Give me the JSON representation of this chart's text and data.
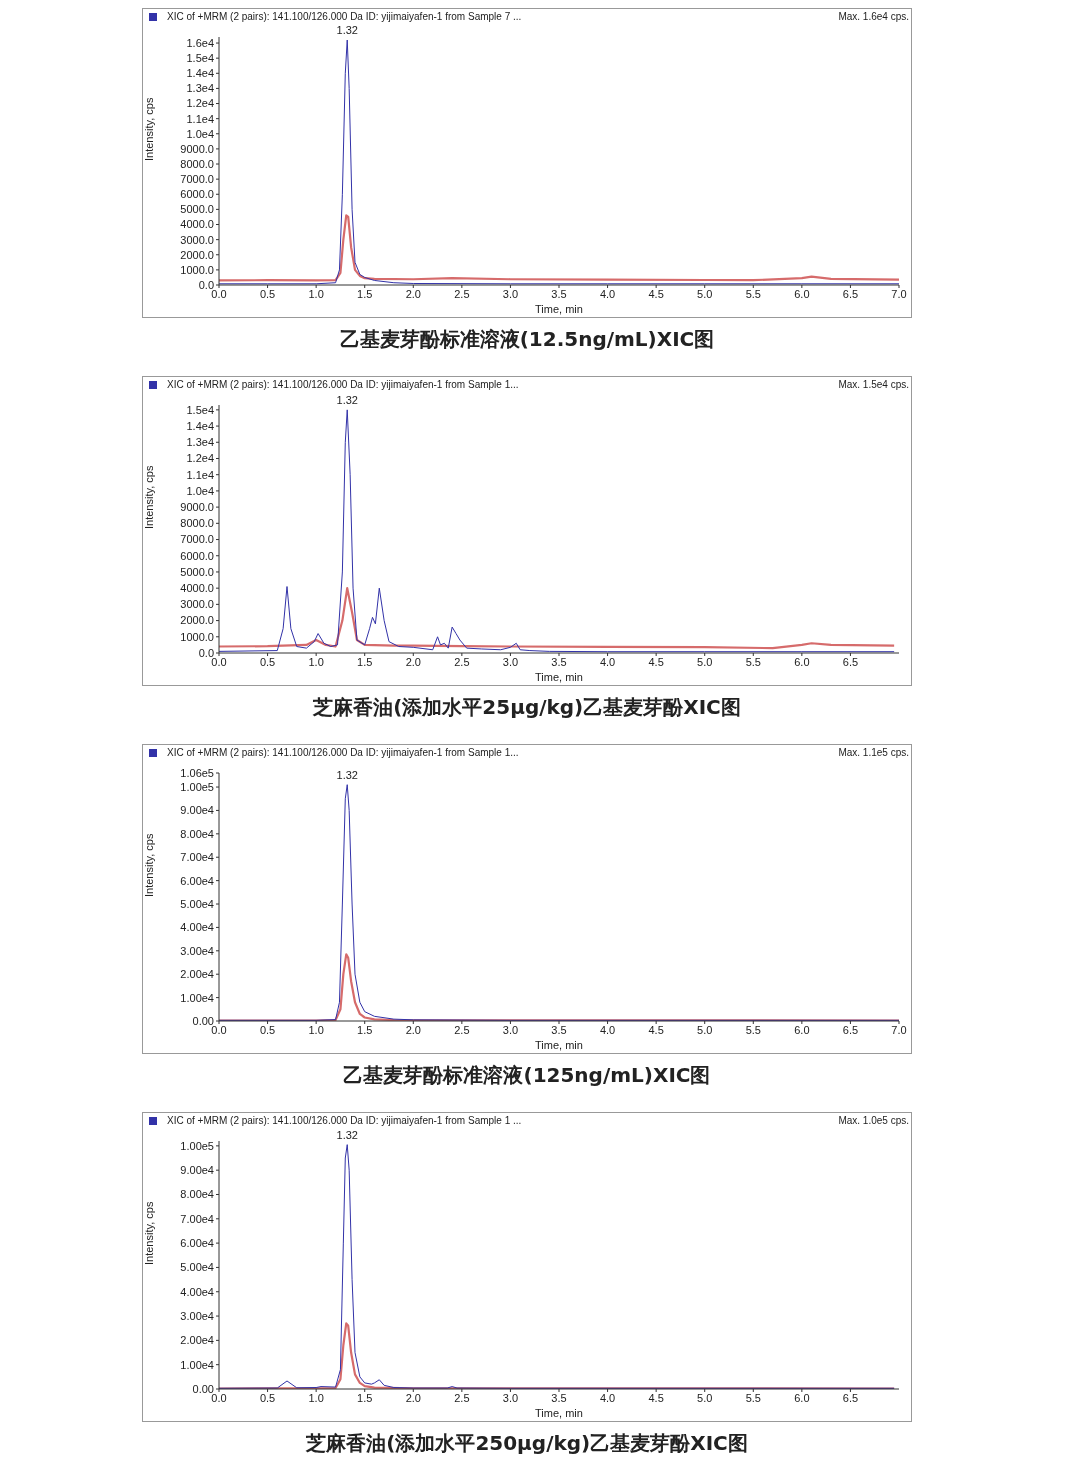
{
  "chart_data": [
    {
      "type": "line",
      "title": "乙基麦芽酚标准溶液(12.5ng/mL)XIC图",
      "xlabel": "Time, min",
      "ylabel": "Intensity, cps",
      "grid": false,
      "legend": false,
      "marker": "none",
      "annotations": [
        "XIC of +MRM (2 pairs): 141.100/126.000 Da ID: yijimaiyafen-1 from Sample 7 ...",
        "Max. 1.6e4 cps.",
        "1.32"
      ],
      "xlim": [
        0,
        7.0
      ],
      "xticks": [
        {
          "value": 0,
          "label": "0.0"
        },
        {
          "value": 0.5,
          "label": "0.5"
        },
        {
          "value": 1,
          "label": "1.0"
        },
        {
          "value": 1.5,
          "label": "1.5"
        },
        {
          "value": 2,
          "label": "2.0"
        },
        {
          "value": 2.5,
          "label": "2.5"
        },
        {
          "value": 3,
          "label": "3.0"
        },
        {
          "value": 3.5,
          "label": "3.5"
        },
        {
          "value": 4,
          "label": "4.0"
        },
        {
          "value": 4.5,
          "label": "4.5"
        },
        {
          "value": 5,
          "label": "5.0"
        },
        {
          "value": 5.5,
          "label": "5.5"
        },
        {
          "value": 6,
          "label": "6.0"
        },
        {
          "value": 6.5,
          "label": "6.5"
        },
        {
          "value": 7,
          "label": "7.0"
        }
      ],
      "ylim": [
        0,
        16400
      ],
      "yticks": [
        {
          "value": 0,
          "label": "0.0"
        },
        {
          "value": 1000,
          "label": "1000.0"
        },
        {
          "value": 2000,
          "label": "2000.0"
        },
        {
          "value": 3000,
          "label": "3000.0"
        },
        {
          "value": 4000,
          "label": "4000.0"
        },
        {
          "value": 5000,
          "label": "5000.0"
        },
        {
          "value": 6000,
          "label": "6000.0"
        },
        {
          "value": 7000,
          "label": "7000.0"
        },
        {
          "value": 8000,
          "label": "8000.0"
        },
        {
          "value": 9000,
          "label": "9000.0"
        },
        {
          "value": 10000,
          "label": "1.0e4"
        },
        {
          "value": 11000,
          "label": "1.1e4"
        },
        {
          "value": 12000,
          "label": "1.2e4"
        },
        {
          "value": 13000,
          "label": "1.3e4"
        },
        {
          "value": 14000,
          "label": "1.4e4"
        },
        {
          "value": 15000,
          "label": "1.5e4"
        },
        {
          "value": 16000,
          "label": "1.6e4"
        }
      ],
      "series": [
        {
          "color": "#d66b6b",
          "x": [
            0,
            0.5,
            1.0,
            1.2,
            1.25,
            1.28,
            1.31,
            1.33,
            1.36,
            1.4,
            1.45,
            1.5,
            1.6,
            2.0,
            2.4,
            3,
            4,
            5,
            5.5,
            6.0,
            6.1,
            6.3,
            7
          ],
          "values": [
            300,
            320,
            300,
            320,
            800,
            3000,
            4600,
            4500,
            2500,
            1000,
            600,
            450,
            400,
            380,
            450,
            380,
            350,
            330,
            320,
            450,
            550,
            400,
            350
          ]
        },
        {
          "color": "#3232a8",
          "x": [
            0,
            0.5,
            1.0,
            1.2,
            1.24,
            1.27,
            1.3,
            1.32,
            1.34,
            1.37,
            1.4,
            1.45,
            1.5,
            1.6,
            1.8,
            2.0,
            3,
            4,
            5,
            6,
            7
          ],
          "values": [
            80,
            80,
            80,
            150,
            1000,
            6000,
            14000,
            16200,
            13000,
            5000,
            1500,
            700,
            500,
            300,
            150,
            100,
            80,
            80,
            80,
            80,
            80
          ]
        }
      ]
    },
    {
      "type": "line",
      "title": "芝麻香油(添加水平25μg/kg)乙基麦芽酚XIC图",
      "xlabel": "Time, min",
      "ylabel": "Intensity, cps",
      "grid": false,
      "legend": false,
      "marker": "none",
      "annotations": [
        "XIC of +MRM (2 pairs): 141.100/126.000 Da ID: yijimaiyafen-1 from Sample 1...",
        "Max. 1.5e4 cps.",
        "1.32"
      ],
      "xlim": [
        0,
        7.0
      ],
      "xticks": [
        {
          "value": 0,
          "label": "0.0"
        },
        {
          "value": 0.5,
          "label": "0.5"
        },
        {
          "value": 1,
          "label": "1.0"
        },
        {
          "value": 1.5,
          "label": "1.5"
        },
        {
          "value": 2,
          "label": "2.0"
        },
        {
          "value": 2.5,
          "label": "2.5"
        },
        {
          "value": 3,
          "label": "3.0"
        },
        {
          "value": 3.5,
          "label": "3.5"
        },
        {
          "value": 4,
          "label": "4.0"
        },
        {
          "value": 4.5,
          "label": "4.5"
        },
        {
          "value": 5,
          "label": "5.0"
        },
        {
          "value": 5.5,
          "label": "5.5"
        },
        {
          "value": 6,
          "label": "6.0"
        },
        {
          "value": 6.5,
          "label": "6.5"
        }
      ],
      "ylim": [
        0,
        15300
      ],
      "yticks": [
        {
          "value": 0,
          "label": "0.0"
        },
        {
          "value": 1000,
          "label": "1000.0"
        },
        {
          "value": 2000,
          "label": "2000.0"
        },
        {
          "value": 3000,
          "label": "3000.0"
        },
        {
          "value": 4000,
          "label": "4000.0"
        },
        {
          "value": 5000,
          "label": "5000.0"
        },
        {
          "value": 6000,
          "label": "6000.0"
        },
        {
          "value": 7000,
          "label": "7000.0"
        },
        {
          "value": 8000,
          "label": "8000.0"
        },
        {
          "value": 9000,
          "label": "9000.0"
        },
        {
          "value": 10000,
          "label": "1.0e4"
        },
        {
          "value": 11000,
          "label": "1.1e4"
        },
        {
          "value": 12000,
          "label": "1.2e4"
        },
        {
          "value": 13000,
          "label": "1.3e4"
        },
        {
          "value": 14000,
          "label": "1.4e4"
        },
        {
          "value": 15000,
          "label": "1.5e4"
        }
      ],
      "series": [
        {
          "color": "#d66b6b",
          "x": [
            0,
            0.5,
            0.9,
            1.0,
            1.1,
            1.2,
            1.27,
            1.32,
            1.37,
            1.42,
            1.5,
            1.8,
            2.0,
            2.5,
            3,
            4,
            5,
            5.7,
            6.0,
            6.1,
            6.3,
            6.95
          ],
          "values": [
            400,
            420,
            500,
            800,
            500,
            400,
            2000,
            4000,
            2500,
            800,
            500,
            450,
            450,
            420,
            400,
            380,
            360,
            300,
            500,
            600,
            500,
            450
          ]
        },
        {
          "color": "#3232a8",
          "x": [
            0,
            0.6,
            0.66,
            0.7,
            0.74,
            0.8,
            0.9,
            0.98,
            1.02,
            1.08,
            1.15,
            1.22,
            1.27,
            1.3,
            1.32,
            1.35,
            1.38,
            1.42,
            1.5,
            1.55,
            1.58,
            1.61,
            1.65,
            1.7,
            1.75,
            1.85,
            2.0,
            2.2,
            2.25,
            2.28,
            2.32,
            2.36,
            2.4,
            2.44,
            2.48,
            2.55,
            2.7,
            2.9,
            3.0,
            3.06,
            3.1,
            3.2,
            3.4,
            4,
            5,
            6,
            6.95
          ],
          "values": [
            100,
            150,
            1500,
            4100,
            1500,
            400,
            300,
            700,
            1200,
            600,
            400,
            500,
            5000,
            13000,
            15000,
            11000,
            4000,
            800,
            500,
            1500,
            2200,
            1800,
            4000,
            2000,
            700,
            400,
            350,
            200,
            1000,
            500,
            600,
            300,
            1600,
            1200,
            800,
            300,
            250,
            200,
            350,
            600,
            200,
            150,
            100,
            80,
            80,
            80,
            80
          ]
        }
      ]
    },
    {
      "type": "line",
      "title": "乙基麦芽酚标准溶液(125ng/mL)XIC图",
      "xlabel": "Time, min",
      "ylabel": "Intensity, cps",
      "grid": false,
      "legend": false,
      "marker": "none",
      "annotations": [
        "XIC of +MRM (2 pairs): 141.100/126.000 Da ID: yijimaiyafen-1 from Sample 1...",
        "Max. 1.1e5 cps.",
        "1.32"
      ],
      "xlim": [
        0,
        7.0
      ],
      "xticks": [
        {
          "value": 0,
          "label": "0.0"
        },
        {
          "value": 0.5,
          "label": "0.5"
        },
        {
          "value": 1,
          "label": "1.0"
        },
        {
          "value": 1.5,
          "label": "1.5"
        },
        {
          "value": 2,
          "label": "2.0"
        },
        {
          "value": 2.5,
          "label": "2.5"
        },
        {
          "value": 3,
          "label": "3.0"
        },
        {
          "value": 3.5,
          "label": "3.5"
        },
        {
          "value": 4,
          "label": "4.0"
        },
        {
          "value": 4.5,
          "label": "4.5"
        },
        {
          "value": 5,
          "label": "5.0"
        },
        {
          "value": 5.5,
          "label": "5.5"
        },
        {
          "value": 6,
          "label": "6.0"
        },
        {
          "value": 6.5,
          "label": "6.5"
        },
        {
          "value": 7,
          "label": "7.0"
        }
      ],
      "ylim": [
        0,
        106000
      ],
      "yticks": [
        {
          "value": 0,
          "label": "0.00"
        },
        {
          "value": 10000,
          "label": "1.00e4"
        },
        {
          "value": 20000,
          "label": "2.00e4"
        },
        {
          "value": 30000,
          "label": "3.00e4"
        },
        {
          "value": 40000,
          "label": "4.00e4"
        },
        {
          "value": 50000,
          "label": "5.00e4"
        },
        {
          "value": 60000,
          "label": "6.00e4"
        },
        {
          "value": 70000,
          "label": "7.00e4"
        },
        {
          "value": 80000,
          "label": "8.00e4"
        },
        {
          "value": 90000,
          "label": "9.00e4"
        },
        {
          "value": 100000,
          "label": "1.00e5"
        },
        {
          "value": 106000,
          "label": "1.06e5"
        }
      ],
      "series": [
        {
          "color": "#d66b6b",
          "x": [
            0,
            1.0,
            1.2,
            1.25,
            1.28,
            1.31,
            1.33,
            1.36,
            1.4,
            1.45,
            1.5,
            1.6,
            1.8,
            2,
            7
          ],
          "values": [
            200,
            200,
            400,
            5000,
            20000,
            28500,
            27000,
            17000,
            8000,
            3000,
            1500,
            700,
            400,
            300,
            200
          ]
        },
        {
          "color": "#3232a8",
          "x": [
            0,
            1.0,
            1.2,
            1.24,
            1.27,
            1.3,
            1.32,
            1.34,
            1.37,
            1.4,
            1.45,
            1.5,
            1.6,
            1.8,
            2.0,
            3,
            7.0
          ],
          "values": [
            300,
            300,
            600,
            8000,
            50000,
            95000,
            101000,
            90000,
            50000,
            20000,
            8000,
            4000,
            2000,
            800,
            500,
            300,
            300
          ]
        }
      ]
    },
    {
      "type": "line",
      "title": "芝麻香油(添加水平250μg/kg)乙基麦芽酚XIC图",
      "xlabel": "Time, min",
      "ylabel": "Intensity, cps",
      "grid": false,
      "legend": false,
      "marker": "none",
      "annotations": [
        "XIC of +MRM (2 pairs): 141.100/126.000 Da ID: yijimaiyafen-1 from Sample 1 ...",
        "Max. 1.0e5 cps.",
        "1.32"
      ],
      "xlim": [
        0,
        7.0
      ],
      "xticks": [
        {
          "value": 0,
          "label": "0.0"
        },
        {
          "value": 0.5,
          "label": "0.5"
        },
        {
          "value": 1,
          "label": "1.0"
        },
        {
          "value": 1.5,
          "label": "1.5"
        },
        {
          "value": 2,
          "label": "2.0"
        },
        {
          "value": 2.5,
          "label": "2.5"
        },
        {
          "value": 3,
          "label": "3.0"
        },
        {
          "value": 3.5,
          "label": "3.5"
        },
        {
          "value": 4,
          "label": "4.0"
        },
        {
          "value": 4.5,
          "label": "4.5"
        },
        {
          "value": 5,
          "label": "5.0"
        },
        {
          "value": 5.5,
          "label": "5.5"
        },
        {
          "value": 6,
          "label": "6.0"
        },
        {
          "value": 6.5,
          "label": "6.5"
        }
      ],
      "ylim": [
        0,
        102000
      ],
      "yticks": [
        {
          "value": 0,
          "label": "0.00"
        },
        {
          "value": 10000,
          "label": "1.00e4"
        },
        {
          "value": 20000,
          "label": "2.00e4"
        },
        {
          "value": 30000,
          "label": "3.00e4"
        },
        {
          "value": 40000,
          "label": "4.00e4"
        },
        {
          "value": 50000,
          "label": "5.00e4"
        },
        {
          "value": 60000,
          "label": "6.00e4"
        },
        {
          "value": 70000,
          "label": "7.00e4"
        },
        {
          "value": 80000,
          "label": "8.00e4"
        },
        {
          "value": 90000,
          "label": "9.00e4"
        },
        {
          "value": 100000,
          "label": "1.00e5"
        }
      ],
      "series": [
        {
          "color": "#d66b6b",
          "x": [
            0,
            1.0,
            1.2,
            1.25,
            1.28,
            1.31,
            1.33,
            1.36,
            1.4,
            1.45,
            1.5,
            1.6,
            2,
            6.95
          ],
          "values": [
            200,
            300,
            400,
            4000,
            18000,
            27000,
            26000,
            15000,
            6000,
            2500,
            1200,
            600,
            300,
            200
          ]
        },
        {
          "color": "#3232a8",
          "x": [
            0,
            0.6,
            0.7,
            0.8,
            1.0,
            1.05,
            1.2,
            1.25,
            1.28,
            1.3,
            1.32,
            1.34,
            1.37,
            1.4,
            1.45,
            1.5,
            1.57,
            1.6,
            1.65,
            1.7,
            1.8,
            2.0,
            2.35,
            2.4,
            2.45,
            3,
            6.95
          ],
          "values": [
            300,
            400,
            3300,
            500,
            600,
            1000,
            800,
            8000,
            60000,
            95000,
            100500,
            90000,
            45000,
            15000,
            5000,
            2500,
            2000,
            2500,
            3800,
            1500,
            600,
            400,
            400,
            1000,
            400,
            300,
            300
          ]
        }
      ]
    }
  ]
}
